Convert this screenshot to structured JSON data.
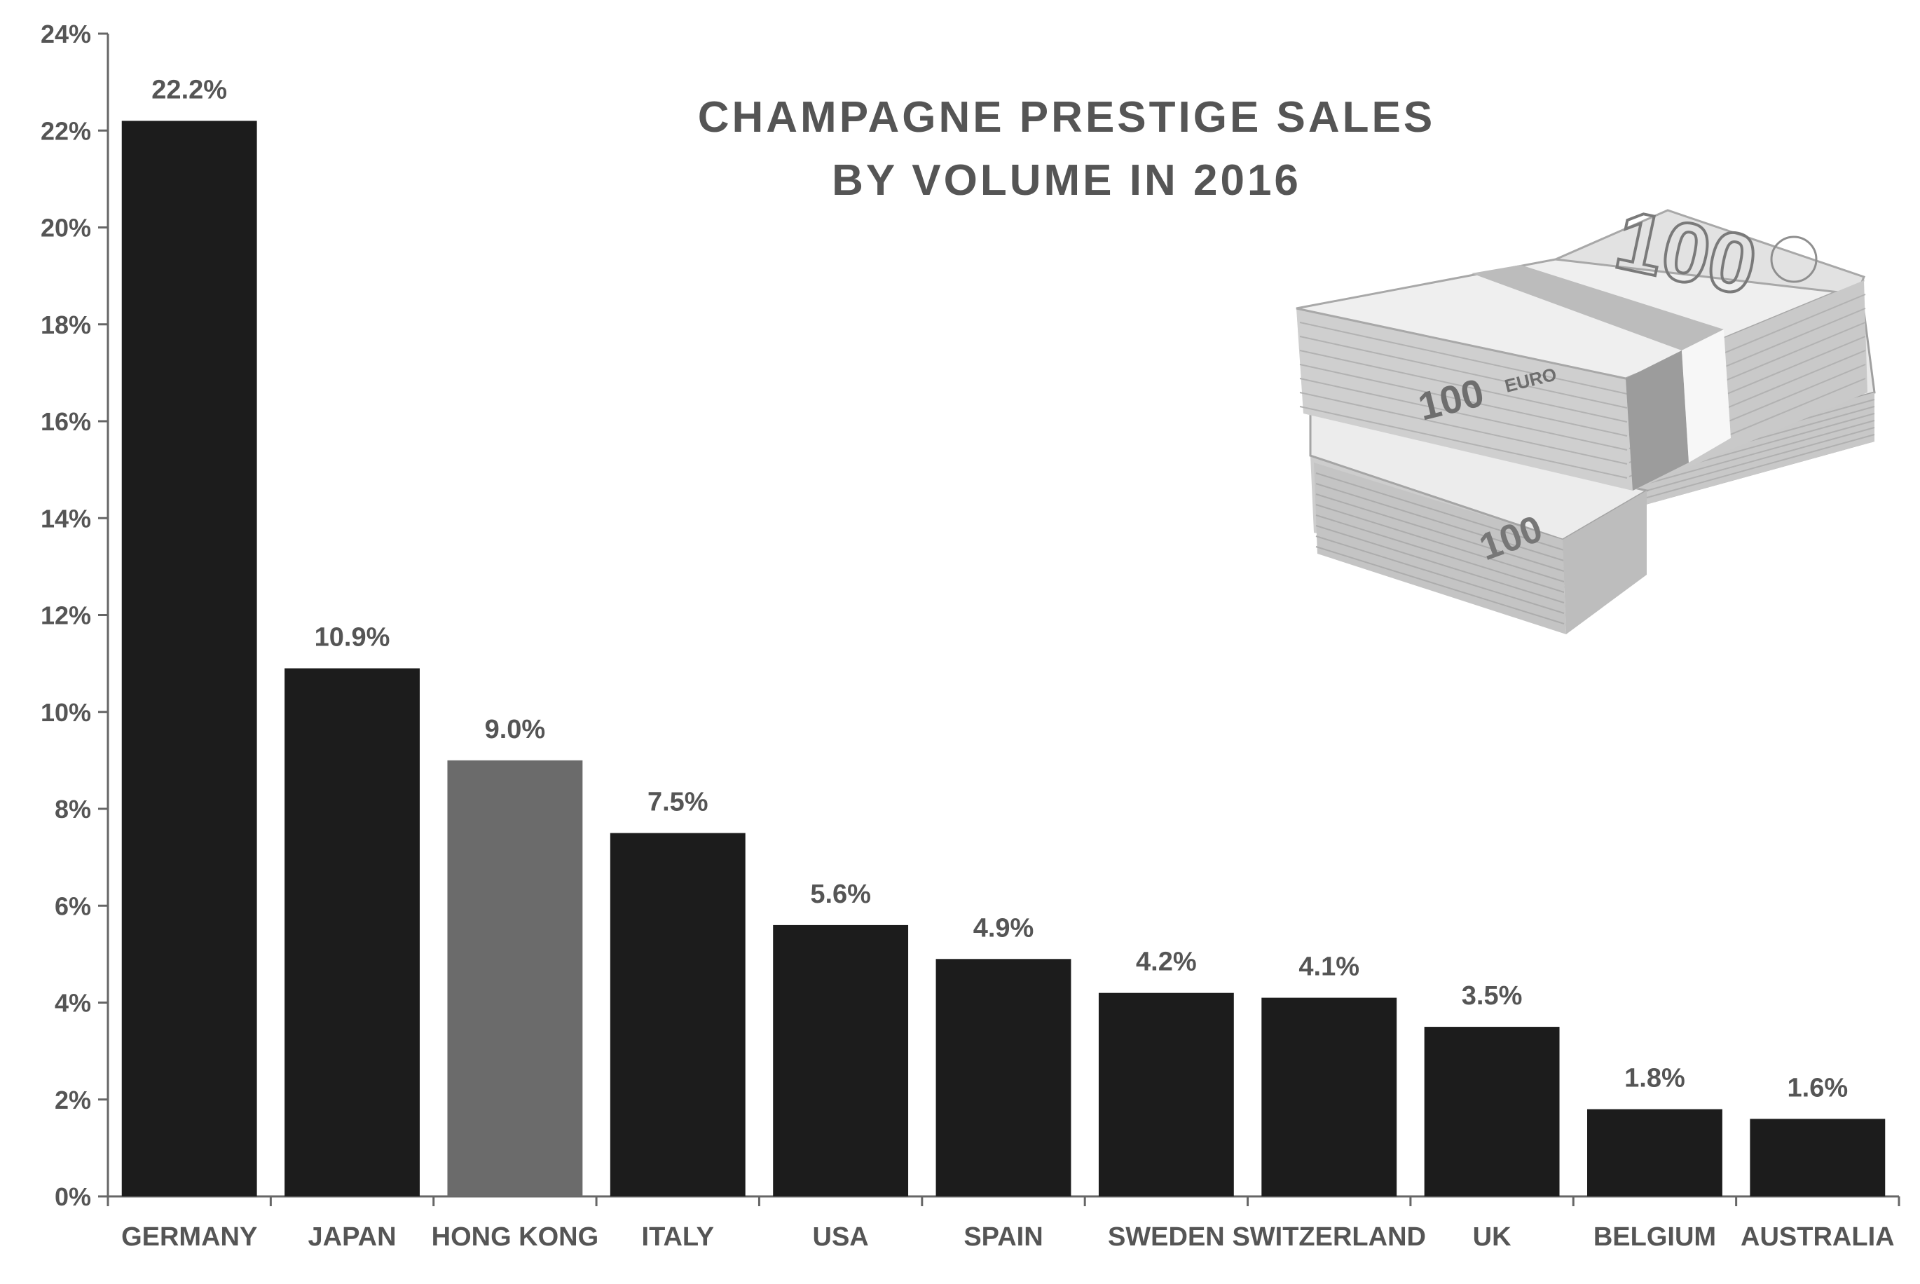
{
  "chart_data": {
    "type": "bar",
    "title": [
      "CHAMPAGNE PRESTIGE SALES",
      "BY VOLUME IN 2016"
    ],
    "categories": [
      "GERMANY",
      "JAPAN",
      "HONG KONG",
      "ITALY",
      "USA",
      "SPAIN",
      "SWEDEN",
      "SWITZERLAND",
      "UK",
      "BELGIUM",
      "AUSTRALIA"
    ],
    "values": [
      22.2,
      10.9,
      9.0,
      7.5,
      5.6,
      4.9,
      4.2,
      4.1,
      3.5,
      1.8,
      1.6
    ],
    "data_labels": [
      "22.2%",
      "10.9%",
      "9.0%",
      "7.5%",
      "5.6%",
      "4.9%",
      "4.2%",
      "4.1%",
      "3.5%",
      "1.8%",
      "1.6%"
    ],
    "y_ticks": [
      0,
      2,
      4,
      6,
      8,
      10,
      12,
      14,
      16,
      18,
      20,
      22,
      24
    ],
    "y_tick_labels": [
      "0%",
      "2%",
      "4%",
      "6%",
      "8%",
      "10%",
      "12%",
      "14%",
      "16%",
      "18%",
      "20%",
      "22%",
      "24%"
    ],
    "ylim": [
      0,
      24
    ],
    "xlabel": "",
    "ylabel": "",
    "grid": false,
    "legend": "none",
    "colors": {
      "bar": "#1c1c1c",
      "highlight_bar": "#6b6b6b",
      "text": "#555555",
      "axis": "#666666"
    },
    "highlight_category": "HONG KONG",
    "decorative_image": "euro-banknote-stacks",
    "decorative_text": [
      "100",
      "EURO"
    ]
  }
}
